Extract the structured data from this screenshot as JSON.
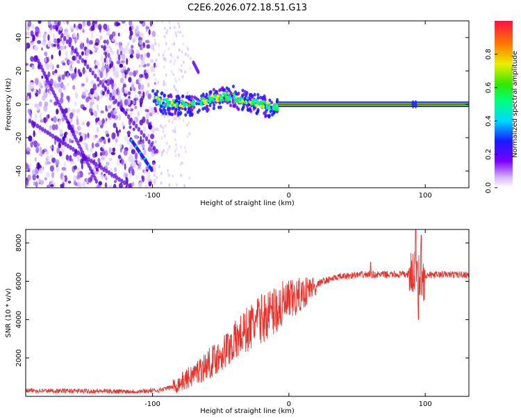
{
  "title": "C2E6.2026.072.18.51.G13",
  "colors": {
    "line": "#e8312b",
    "axis": "#000000",
    "background": "#ffffff",
    "spectrum_core": "#5b00e0"
  },
  "chart_data": [
    {
      "type": "heatmap",
      "title": "C2E6.2026.072.18.51.G13",
      "xlabel": "Height of straight line (km)",
      "ylabel": "Frequency (Hz)",
      "xlim": [
        -193,
        132
      ],
      "ylim": [
        -50,
        50
      ],
      "xticks": [
        -100,
        0,
        100
      ],
      "yticks": [
        -40,
        -20,
        0,
        20,
        40
      ],
      "xtick_labels": [
        "-100",
        "0",
        "100"
      ],
      "ytick_labels": [
        "-40",
        "-20",
        "0",
        "20",
        "40"
      ],
      "colorbar": {
        "label": "Normalized spectral amplitude",
        "range": [
          0,
          1
        ],
        "ticks": [
          0.0,
          0.2,
          0.4,
          0.6,
          0.8
        ],
        "tick_labels": [
          "0.0",
          "0.2",
          "0.4",
          "0.6",
          "0.8"
        ]
      },
      "features": [
        {
          "name": "noise-field",
          "x_range": [
            -193,
            -100
          ],
          "y_range": [
            -50,
            50
          ]
        },
        {
          "name": "carrier-line",
          "x_range": [
            -100,
            132
          ],
          "y_center": 0
        },
        {
          "name": "descending-trace",
          "x_range": [
            -115,
            -100
          ],
          "y_range": [
            -22,
            -40
          ]
        },
        {
          "name": "upper-blob",
          "x_range": [
            -70,
            -66
          ],
          "y_range": [
            19,
            25
          ]
        }
      ]
    },
    {
      "type": "line",
      "xlabel": "Height of straight line (km)",
      "ylabel": "SNR (10 * v/v)",
      "xlim": [
        -193,
        132
      ],
      "ylim": [
        0,
        8700
      ],
      "xticks": [
        -100,
        0,
        100
      ],
      "yticks": [
        2000,
        4000,
        6000,
        8000
      ],
      "xtick_labels": [
        "-100",
        "0",
        "100"
      ],
      "ytick_labels": [
        "2000",
        "4000",
        "6000",
        "8000"
      ],
      "series": [
        {
          "name": "SNR",
          "x": [
            -193,
            -150,
            -110,
            -95,
            -85,
            -75,
            -65,
            -55,
            -45,
            -35,
            -25,
            -15,
            -5,
            5,
            15,
            25,
            35,
            45,
            55,
            65,
            75,
            85,
            90,
            95,
            100,
            110,
            120,
            132
          ],
          "values": [
            300,
            280,
            260,
            320,
            500,
            900,
            1400,
            1900,
            2500,
            3200,
            3800,
            4300,
            4700,
            5100,
            5600,
            6000,
            6200,
            6300,
            6350,
            6350,
            6350,
            6350,
            6400,
            6500,
            6300,
            6350,
            6350,
            6350
          ],
          "spikes": [
            {
              "x": 60,
              "value": 7000
            },
            {
              "x": 93,
              "value": 8700
            },
            {
              "x": 95,
              "value": 4000
            },
            {
              "x": 97,
              "value": 8400
            }
          ]
        }
      ]
    }
  ]
}
